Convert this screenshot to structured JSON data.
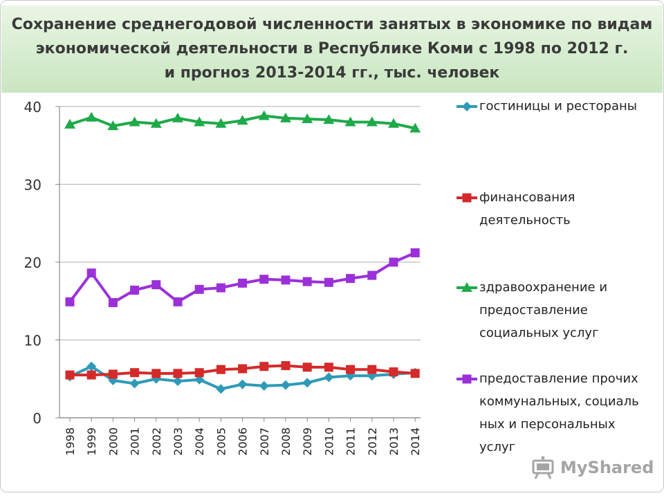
{
  "header": {
    "title_lines": [
      "Сохранение среднегодовой численности занятых в экономике по видам",
      "экономической деятельности в Республике Коми с 1998 по 2012 г.",
      "и прогноз 2013-2014 гг., тыс. человек"
    ]
  },
  "chart_data": {
    "type": "line",
    "title": "Сохранение среднегодовой численности занятых в экономике по видам экономической деятельности в Республике Коми с 1998 по 2012 г. и прогноз 2013-2014 гг., тыс. человек",
    "x": [
      "1998",
      "1999",
      "2000",
      "2001",
      "2002",
      "2003",
      "2004",
      "2005",
      "2006",
      "2007",
      "2008",
      "2009",
      "2010",
      "2011",
      "2012",
      "2013",
      "2014"
    ],
    "ylim": [
      0,
      40
    ],
    "yticks": [
      0,
      10,
      20,
      30,
      40
    ],
    "grid": true,
    "legend_position": "right",
    "series": [
      {
        "name": "гостиницы и рестораны",
        "color": "#2e9ab8",
        "marker": "diamond",
        "values": [
          5.3,
          6.6,
          4.8,
          4.4,
          5.0,
          4.7,
          4.9,
          3.7,
          4.3,
          4.1,
          4.2,
          4.5,
          5.2,
          5.4,
          5.4,
          5.6,
          5.8
        ]
      },
      {
        "name": "финансования деятельность",
        "color": "#d42a2a",
        "marker": "square",
        "values": [
          5.5,
          5.5,
          5.6,
          5.8,
          5.7,
          5.7,
          5.8,
          6.2,
          6.3,
          6.6,
          6.7,
          6.5,
          6.5,
          6.2,
          6.2,
          5.9,
          5.7
        ]
      },
      {
        "name": "здравоохранение и предоставление социальных услуг",
        "color": "#1faa4a",
        "marker": "triangle",
        "values": [
          37.7,
          38.6,
          37.5,
          38.0,
          37.8,
          38.5,
          38.0,
          37.8,
          38.2,
          38.8,
          38.5,
          38.4,
          38.3,
          38.0,
          38.0,
          37.8,
          37.2
        ]
      },
      {
        "name": "предоставление прочих коммунальных, социальных и персональных услуг",
        "color": "#9b30d9",
        "marker": "square",
        "values": [
          14.9,
          18.6,
          14.8,
          16.4,
          17.1,
          14.9,
          16.5,
          16.7,
          17.3,
          17.8,
          17.7,
          17.5,
          17.4,
          17.9,
          18.3,
          20.0,
          21.2
        ]
      }
    ]
  },
  "legend": {
    "items": [
      {
        "lines": [
          "гостиницы и рестораны"
        ]
      },
      {
        "lines": [
          "финансования",
          "деятельность"
        ]
      },
      {
        "lines": [
          "здравоохранение и",
          "предоставление",
          "социальных услуг"
        ]
      },
      {
        "lines": [
          "предоставление прочих",
          "коммунальных, социаль",
          "ных и персональных",
          "услуг"
        ]
      }
    ]
  },
  "watermark": {
    "text": "MyShared",
    "icon": "projector-icon"
  }
}
